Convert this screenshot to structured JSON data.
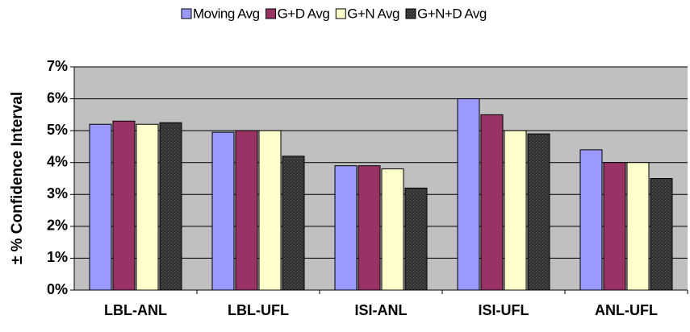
{
  "chart_data": {
    "type": "bar",
    "y_label": "± % Confidence Interval",
    "categories": [
      "LBL-ANL",
      "LBL-UFL",
      "ISI-ANL",
      "ISI-UFL",
      "ANL-UFL"
    ],
    "series": [
      {
        "name": "Moving Avg",
        "color": "#9999ff",
        "values": [
          5.2,
          4.95,
          3.9,
          6.0,
          4.4
        ]
      },
      {
        "name": "G+D Avg",
        "color": "#993366",
        "values": [
          5.3,
          5.0,
          3.9,
          5.5,
          4.0
        ]
      },
      {
        "name": "G+N Avg",
        "color": "#ffffcc",
        "values": [
          5.2,
          5.0,
          3.8,
          5.0,
          4.0
        ]
      },
      {
        "name": "G+N+D Avg",
        "color": "#333333",
        "values": [
          5.25,
          4.2,
          3.2,
          4.9,
          3.5
        ]
      }
    ],
    "ylim": [
      0,
      7
    ],
    "yticks": [
      {
        "value": 0,
        "label": "0%"
      },
      {
        "value": 1,
        "label": "1%"
      },
      {
        "value": 2,
        "label": "2%"
      },
      {
        "value": 3,
        "label": "3%"
      },
      {
        "value": 4,
        "label": "4%"
      },
      {
        "value": 5,
        "label": "5%"
      },
      {
        "value": 6,
        "label": "6%"
      },
      {
        "value": 7,
        "label": "7%"
      }
    ],
    "grid": true,
    "legend": "top"
  }
}
